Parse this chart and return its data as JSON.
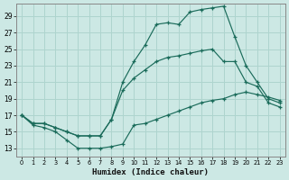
{
  "xlabel": "Humidex (Indice chaleur)",
  "bg_color": "#cce8e4",
  "line_color": "#1a6b5a",
  "grid_color": "#aed4ce",
  "xlim": [
    -0.5,
    23.5
  ],
  "ylim": [
    12.0,
    30.5
  ],
  "yticks": [
    13,
    15,
    17,
    19,
    21,
    23,
    25,
    27,
    29
  ],
  "xticks": [
    0,
    1,
    2,
    3,
    4,
    5,
    6,
    7,
    8,
    9,
    10,
    11,
    12,
    13,
    14,
    15,
    16,
    17,
    18,
    19,
    20,
    21,
    22,
    23
  ],
  "line_top_x": [
    0,
    1,
    2,
    3,
    4,
    5,
    6,
    7,
    8,
    9,
    10,
    11,
    12,
    13,
    14,
    15,
    16,
    17,
    18,
    19,
    20,
    21,
    22,
    23
  ],
  "line_top_y": [
    17.0,
    16.0,
    16.0,
    15.5,
    15.0,
    14.5,
    14.5,
    14.5,
    16.5,
    21.0,
    23.5,
    25.5,
    28.0,
    28.2,
    28.0,
    29.5,
    29.8,
    30.0,
    30.2,
    26.5,
    23.0,
    21.0,
    19.0,
    18.5
  ],
  "line_mid_x": [
    0,
    1,
    2,
    3,
    4,
    5,
    6,
    7,
    8,
    9,
    10,
    11,
    12,
    13,
    14,
    15,
    16,
    17,
    18,
    19,
    20,
    21,
    22,
    23
  ],
  "line_mid_y": [
    17.0,
    16.0,
    16.0,
    15.5,
    15.0,
    14.5,
    14.5,
    14.5,
    16.5,
    20.0,
    21.5,
    22.5,
    23.5,
    24.0,
    24.2,
    24.5,
    24.8,
    25.0,
    23.5,
    23.5,
    21.0,
    20.5,
    18.5,
    18.0
  ],
  "line_bot_x": [
    0,
    1,
    2,
    3,
    4,
    5,
    6,
    7,
    8,
    9,
    10,
    11,
    12,
    13,
    14,
    15,
    16,
    17,
    18,
    19,
    20,
    21,
    22,
    23
  ],
  "line_bot_y": [
    17.0,
    15.8,
    15.5,
    15.0,
    14.0,
    13.0,
    13.0,
    13.0,
    13.2,
    13.5,
    15.8,
    16.0,
    16.5,
    17.0,
    17.5,
    18.0,
    18.5,
    18.8,
    19.0,
    19.5,
    19.8,
    19.5,
    19.2,
    18.8
  ]
}
